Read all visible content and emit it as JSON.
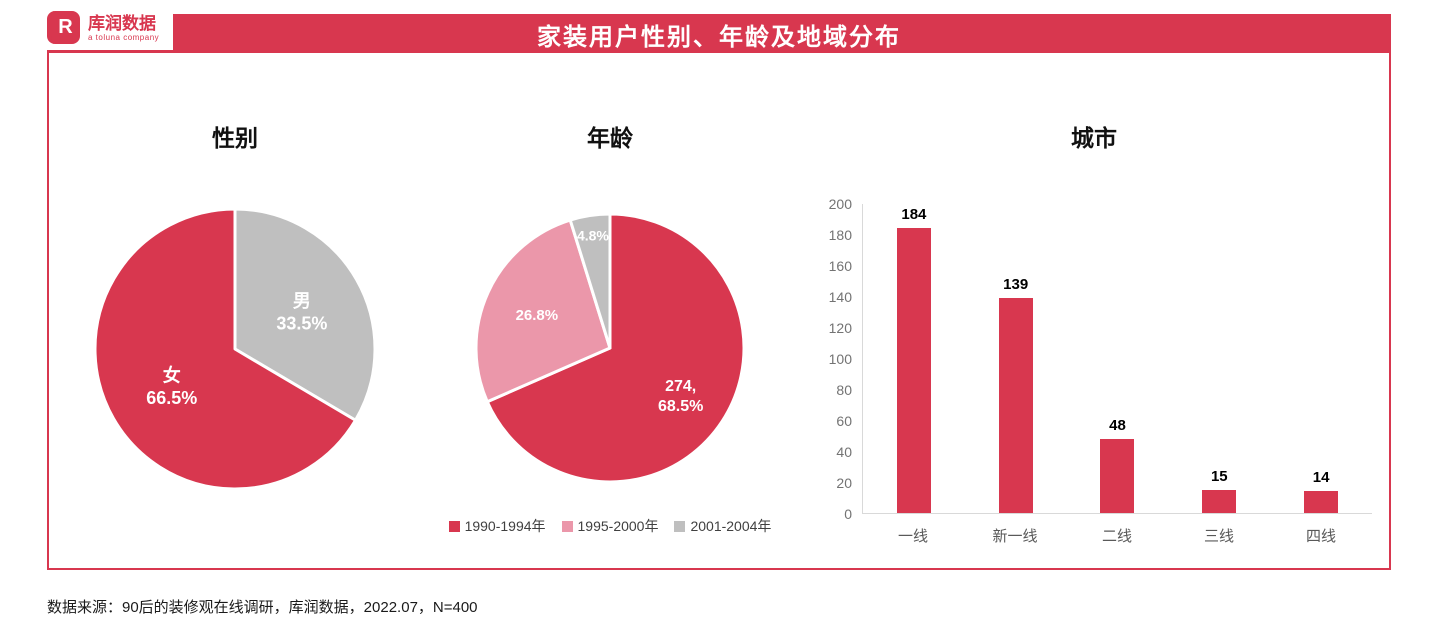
{
  "logo": {
    "mark": "R",
    "name": "库润数据",
    "subtitle": "a toluna company"
  },
  "header": {
    "title": "家装用户性别、年龄及地域分布"
  },
  "footer": {
    "source": "数据来源：90后的装修观在线调研，库润数据，2022.07，N=400"
  },
  "colors": {
    "primary": "#D8374F",
    "pink": "#EB97AA",
    "gray": "#BFBFBF",
    "axis_line": "#D9D9D9",
    "tick_text": "#737373",
    "category_text": "#595959",
    "legend_text": "#404040",
    "header_text": "#FFFFFF"
  },
  "chart_data": [
    {
      "type": "pie",
      "title": "性别",
      "start_angle_deg": 0,
      "direction": "clockwise",
      "slices": [
        {
          "label": "男",
          "value": 33.5,
          "display": [
            "男",
            "33.5%"
          ],
          "color_key": "gray",
          "label_r": 0.55,
          "font_size": 18
        },
        {
          "label": "女",
          "value": 66.5,
          "display": [
            "女",
            "66.5%"
          ],
          "color_key": "primary",
          "label_r": 0.52,
          "font_size": 18
        }
      ]
    },
    {
      "type": "pie",
      "title": "年龄",
      "start_angle_deg": 0,
      "direction": "clockwise",
      "legend_position": "bottom",
      "slices": [
        {
          "label": "1990-1994年",
          "value": 68.5,
          "count": 274,
          "display": [
            "274,",
            "68.5%"
          ],
          "color_key": "primary",
          "label_r": 0.63,
          "font_size": 16
        },
        {
          "label": "1995-2000年",
          "value": 26.8,
          "display": [
            "26.8%"
          ],
          "color_key": "pink",
          "label_r": 0.6,
          "font_size": 15
        },
        {
          "label": "2001-2004年",
          "value": 4.8,
          "display": [
            "4.8%"
          ],
          "color_key": "gray",
          "label_r": 0.85,
          "font_size": 14
        }
      ]
    },
    {
      "type": "bar",
      "title": "城市",
      "categories": [
        "一线",
        "新一线",
        "二线",
        "三线",
        "四线"
      ],
      "values": [
        184,
        139,
        48,
        15,
        14
      ],
      "ylim": [
        0,
        200
      ],
      "ytick_step": 20,
      "grid": false,
      "bar_color_key": "primary"
    }
  ]
}
